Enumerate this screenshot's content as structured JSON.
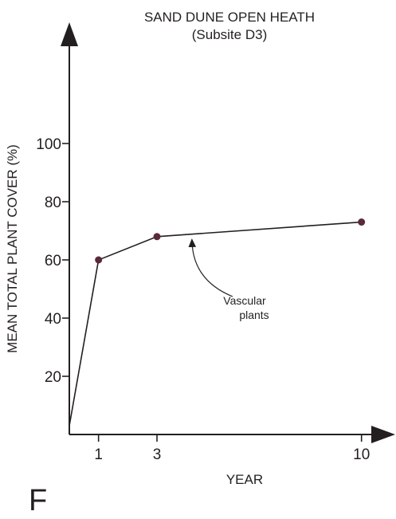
{
  "chart_data": {
    "type": "line",
    "title": "SAND DUNE OPEN HEATH",
    "subtitle": "(Subsite D3)",
    "xlabel": "YEAR",
    "ylabel": "MEAN TOTAL PLANT COVER (%)",
    "x_ticks": [
      1,
      3,
      10
    ],
    "y_ticks": [
      20,
      40,
      60,
      80,
      100
    ],
    "xlim": [
      0,
      11
    ],
    "ylim": [
      0,
      125
    ],
    "grid": false,
    "series": [
      {
        "x": [
          0,
          1,
          3,
          10
        ],
        "y": [
          3,
          60,
          68,
          73
        ]
      }
    ],
    "annotation": {
      "line1": "Vascular",
      "line2": "plants",
      "points_to": {
        "x": 4.2,
        "y": 68.5
      }
    },
    "panel_letter": "F",
    "colors": {
      "ink": "#231f20",
      "marker": "#5a2a3a",
      "background": "#ffffff"
    }
  }
}
